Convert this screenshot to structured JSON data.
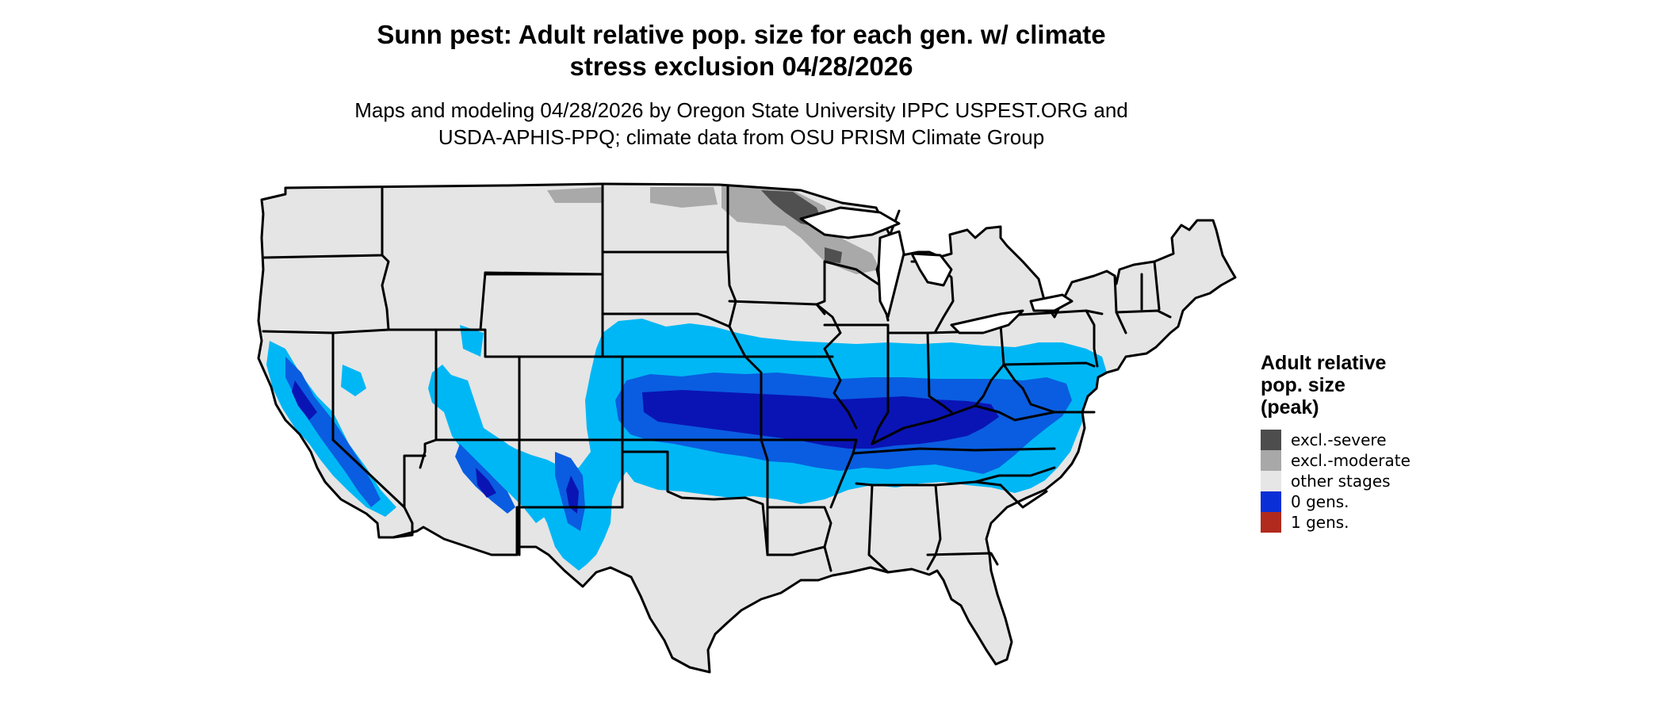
{
  "title": {
    "line1": "Sunn pest: Adult relative pop. size for each gen. w/ climate",
    "line2": "stress exclusion 04/28/2026"
  },
  "subtitle": {
    "line1": "Maps and modeling 04/28/2026 by Oregon State University IPPC USPEST.ORG and",
    "line2": "USDA-APHIS-PPQ; climate data from OSU PRISM Climate Group"
  },
  "map": {
    "region": "contiguous-united-states",
    "land_color": "#e5e5e5",
    "border_color": "#000000",
    "layers": [
      {
        "class": "excl.-severe",
        "color": "#505050",
        "extent": "northeast Minnesota"
      },
      {
        "class": "excl.-moderate",
        "color": "#a9a9a9",
        "extent": "northern North Dakota, northern Minnesota, northern Wisconsin"
      },
      {
        "class": "0 gens. (light)",
        "color": "#00b7f5",
        "extent": "central band from Colorado/Nebraska east to Ohio, Virginia and North Carolina; California, Arizona, New Mexico uplands"
      },
      {
        "class": "0 gens. (medium)",
        "color": "#0a5de0",
        "extent": "Kansas, Missouri, Illinois, Kentucky, Tennessee, California Central Valley, Arizona"
      },
      {
        "class": "0 gens. (dark)",
        "color": "#0a14b4",
        "extent": "central Kansas through southern Illinois and Kentucky"
      }
    ]
  },
  "legend": {
    "title_line1": "Adult relative",
    "title_line2": "pop. size",
    "title_line3": "(peak)",
    "items": [
      {
        "label": "excl.-severe",
        "color": "#4d4d4d"
      },
      {
        "label": "excl.-moderate",
        "color": "#a8a8a8"
      },
      {
        "label": "other stages",
        "color": "#e6e6e6"
      },
      {
        "label": "0 gens.",
        "color": "#0a2fd6"
      },
      {
        "label": "1 gens.",
        "color": "#b22a1e"
      }
    ]
  }
}
